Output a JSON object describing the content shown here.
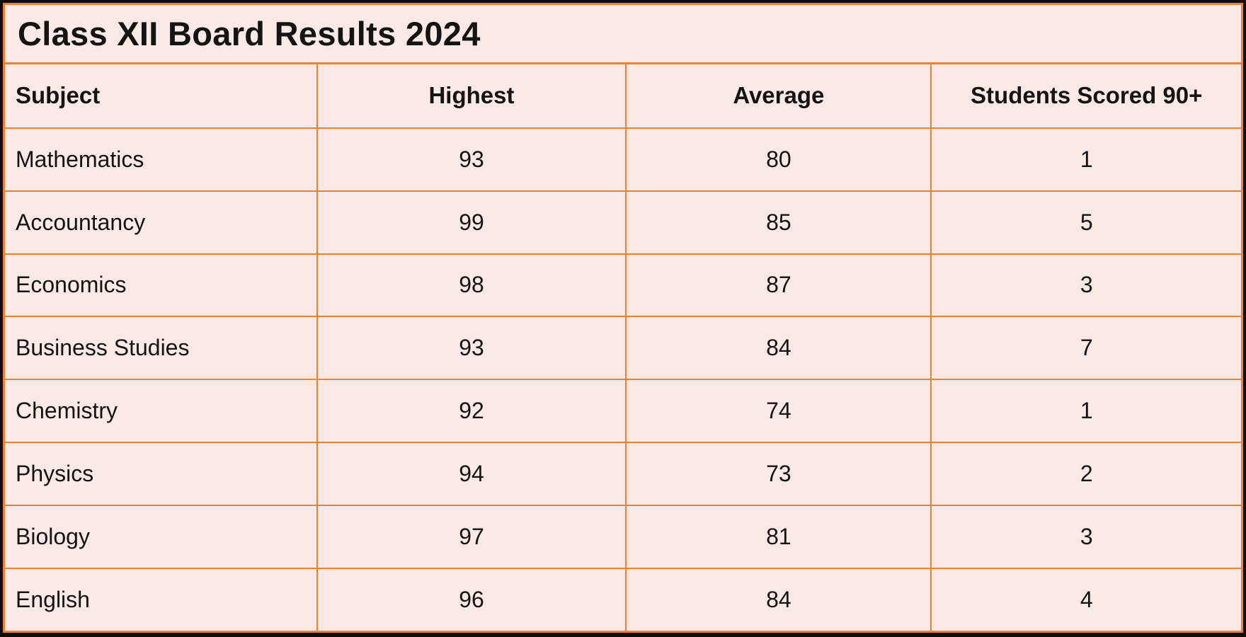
{
  "title": "Class XII Board Results 2024",
  "table": {
    "columns": [
      "Subject",
      "Highest",
      "Average",
      "Students Scored 90+"
    ],
    "rows": [
      [
        "Mathematics",
        "93",
        "80",
        "1"
      ],
      [
        "Accountancy",
        "99",
        "85",
        "5"
      ],
      [
        "Economics",
        "98",
        "87",
        "3"
      ],
      [
        "Business Studies",
        "93",
        "84",
        "7"
      ],
      [
        "Chemistry",
        "92",
        "74",
        "1"
      ],
      [
        "Physics",
        "94",
        "73",
        "2"
      ],
      [
        "Biology",
        "97",
        "81",
        "3"
      ],
      [
        "English",
        "96",
        "84",
        "4"
      ]
    ]
  },
  "colors": {
    "background": "#FAE9E4",
    "grid_border": "#EC8136",
    "outer_border": "#0F0F0F",
    "text": "#141414"
  },
  "chart_data": {
    "type": "table",
    "title": "Class XII Board Results 2024",
    "columns": [
      "Subject",
      "Highest",
      "Average",
      "Students Scored 90+"
    ],
    "rows": [
      {
        "subject": "Mathematics",
        "highest": 93,
        "average": 80,
        "students_scored_90_plus": 1
      },
      {
        "subject": "Accountancy",
        "highest": 99,
        "average": 85,
        "students_scored_90_plus": 5
      },
      {
        "subject": "Economics",
        "highest": 98,
        "average": 87,
        "students_scored_90_plus": 3
      },
      {
        "subject": "Business Studies",
        "highest": 93,
        "average": 84,
        "students_scored_90_plus": 7
      },
      {
        "subject": "Chemistry",
        "highest": 92,
        "average": 74,
        "students_scored_90_plus": 1
      },
      {
        "subject": "Physics",
        "highest": 94,
        "average": 73,
        "students_scored_90_plus": 2
      },
      {
        "subject": "Biology",
        "highest": 97,
        "average": 81,
        "students_scored_90_plus": 3
      },
      {
        "subject": "English",
        "highest": 96,
        "average": 84,
        "students_scored_90_plus": 4
      }
    ]
  }
}
